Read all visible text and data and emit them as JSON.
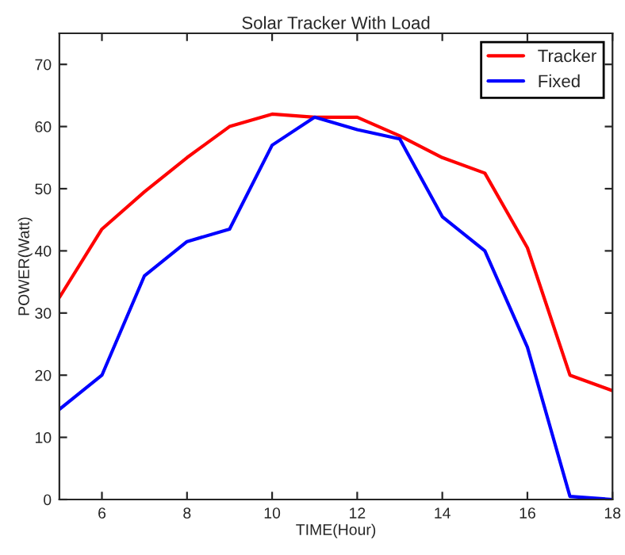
{
  "chart_data": {
    "type": "line",
    "title": "Solar Tracker With Load",
    "xlabel": "TIME(Hour)",
    "ylabel": "POWER(Watt)",
    "x": [
      5,
      6,
      7,
      8,
      9,
      10,
      11,
      12,
      13,
      14,
      15,
      16,
      17,
      18
    ],
    "series": [
      {
        "name": "Tracker",
        "color": "#ff0000",
        "values": [
          32.5,
          43.5,
          49.5,
          55,
          60,
          62,
          61.5,
          61.5,
          58.5,
          55,
          52.5,
          40.5,
          20,
          17.5
        ]
      },
      {
        "name": "Fixed",
        "color": "#0000ff",
        "values": [
          14.5,
          20,
          36,
          41.5,
          43.5,
          57,
          61.5,
          59.5,
          58,
          45.5,
          40,
          24.5,
          0.5,
          0
        ]
      }
    ],
    "xlim": [
      5,
      18
    ],
    "xticks": [
      6,
      8,
      10,
      12,
      14,
      16,
      18
    ],
    "ylim": [
      0,
      75
    ],
    "yticks": [
      0,
      10,
      20,
      30,
      40,
      50,
      60,
      70
    ],
    "grid": false,
    "legend": "top right",
    "marker": "none",
    "line_style": "solid"
  }
}
